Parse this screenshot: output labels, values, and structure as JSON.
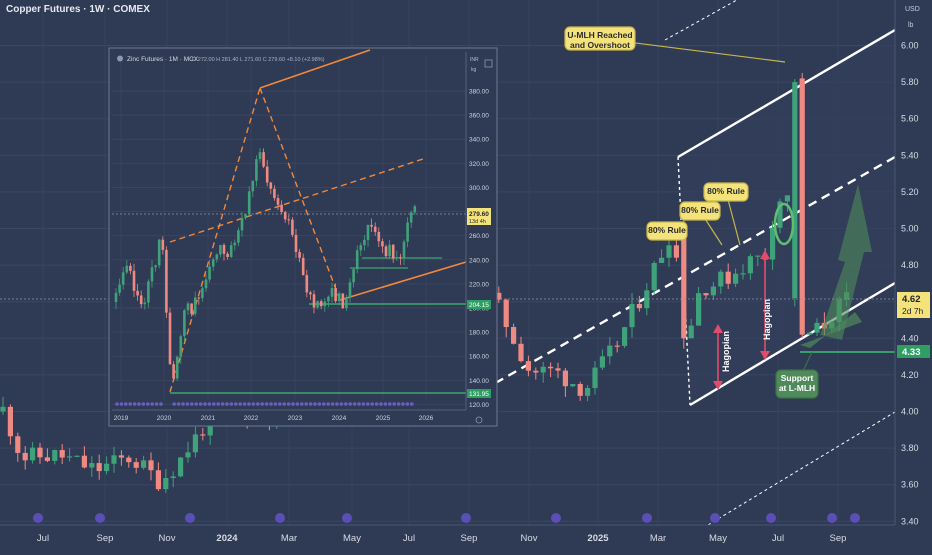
{
  "header": {
    "title": "Copper Futures · 1W · COMEX"
  },
  "colors": {
    "bg": "#2f3a55",
    "up": "#3fa27a",
    "down": "#ef8a82",
    "white": "#ffffff",
    "orange": "#f2883a",
    "green_fill": "#4f8a5a",
    "yellow": "#f4e37a"
  },
  "chart_data": [
    {
      "type": "candlestick",
      "title": "Copper Futures · 1W · COMEX",
      "currency": "USD",
      "unit": "lb",
      "price_axis_ticks": [
        "6.00",
        "5.80",
        "5.60",
        "5.40",
        "5.20",
        "5.00",
        "4.80",
        "4.60",
        "4.40",
        "4.20",
        "4.00",
        "3.80",
        "3.60",
        "3.40"
      ],
      "ylim": [
        3.4,
        6.05
      ],
      "time_axis_ticks": [
        "Jul",
        "Sep",
        "Nov",
        "2024",
        "Mar",
        "May",
        "Jul",
        "Sep",
        "Nov",
        "2025",
        "Mar",
        "May",
        "Jul",
        "Sep"
      ],
      "last_price": {
        "value": "4.62",
        "countdown": "2d 7h"
      },
      "support_level": "4.33",
      "annotations": {
        "mlh_note": "U-MLH Reached and Overshoot",
        "rule_a": "80% Rule",
        "rule_b": "80% Rule",
        "rule_c": "80% Rule",
        "hagopian_a": "Hagopian",
        "hagopian_b": "Hagopian",
        "support_note": "Support at L-MLH"
      }
    },
    {
      "type": "candlestick",
      "title": "Zinc Futures · 1M · MCX",
      "ohlc_line": "O 272.00  H 281.40  L 271.60  C 279.60  +8.10 (+2.98%)",
      "currency": "INR",
      "unit": "kg",
      "price_axis_ticks": [
        "380.00",
        "360.00",
        "340.00",
        "320.00",
        "300.00",
        "280.00",
        "260.00",
        "240.00",
        "220.00",
        "200.00",
        "180.00",
        "160.00",
        "140.00",
        "120.00"
      ],
      "ylim": [
        115,
        395
      ],
      "time_axis_ticks": [
        "2019",
        "2020",
        "2021",
        "2022",
        "2023",
        "2024",
        "2025",
        "2026"
      ],
      "last_price": {
        "value": "279.60",
        "countdown": "13d 4h"
      },
      "levels": [
        "204.15",
        "131.95"
      ]
    }
  ]
}
